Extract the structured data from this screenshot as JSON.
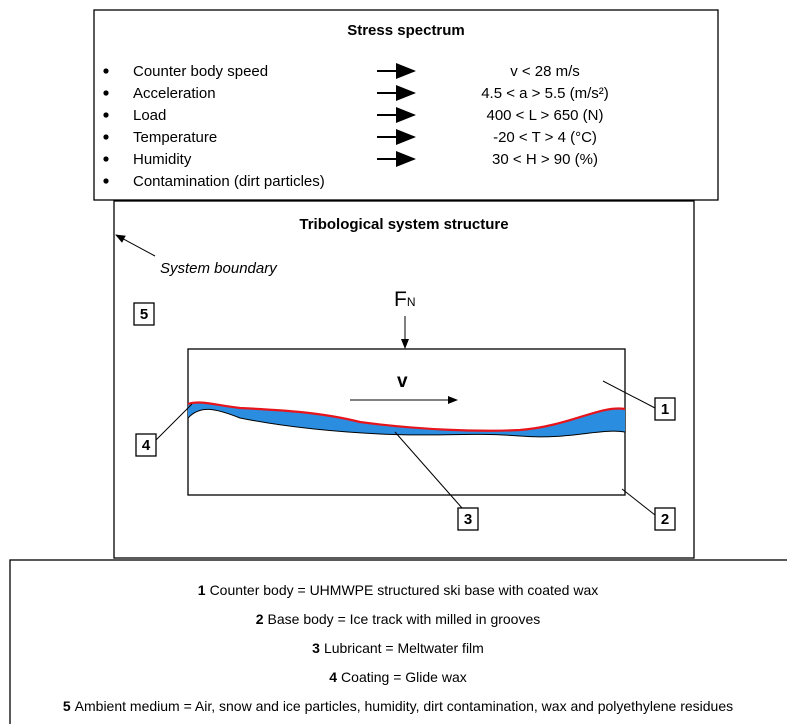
{
  "stress_spectrum": {
    "title": "Stress spectrum",
    "items": [
      {
        "label": "Counter body speed",
        "value": "v < 28 m/s"
      },
      {
        "label": "Acceleration",
        "value": "4.5 < a > 5.5 (m/s²)"
      },
      {
        "label": "Load",
        "value": "400 < L > 650 (N)"
      },
      {
        "label": "Temperature",
        "value": "-20 < T > 4 (°C)"
      },
      {
        "label": "Humidity",
        "value": "30 < H > 90 (%)"
      },
      {
        "label": "Contamination (dirt particles)"
      }
    ]
  },
  "system": {
    "title": "Tribological system structure",
    "boundary_label": "System boundary",
    "force": {
      "symbol": "F",
      "subscript": "N"
    },
    "velocity": "v",
    "markers": [
      "1",
      "2",
      "3",
      "4",
      "5"
    ]
  },
  "legend": [
    {
      "number": "1",
      "text": "Counter body = UHMWPE structured ski base with coated wax"
    },
    {
      "number": "2",
      "text": "Base body = Ice track with milled in grooves"
    },
    {
      "number": "3",
      "text": "Lubricant = Meltwater film"
    },
    {
      "number": "4",
      "text": "Coating = Glide wax"
    },
    {
      "number": "5",
      "text": "Ambient medium = Air, snow and ice particles, humidity, dirt contamination, wax and polyethylene residues"
    }
  ]
}
